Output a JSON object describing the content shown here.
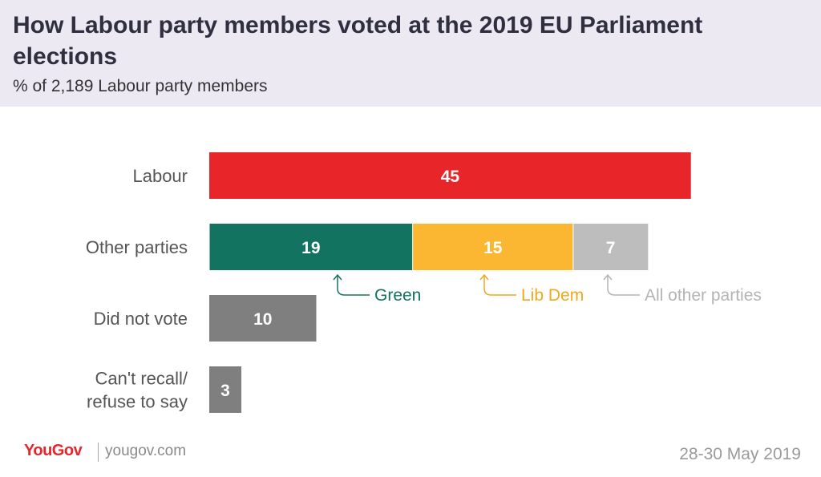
{
  "header": {
    "title": "How Labour party members voted at the 2019 EU Parliament elections",
    "subtitle": "% of 2,189 Labour party members"
  },
  "colors": {
    "header_bg": "#ece9f3",
    "labour": "#e8262a",
    "green": "#137361",
    "lib_dem": "#fbb632",
    "all_other": "#bdbdbd",
    "neutral": "#7f7f7f"
  },
  "chart_data": {
    "type": "bar",
    "orientation": "horizontal",
    "stacked": true,
    "xlim": [
      0,
      45
    ],
    "grid": false,
    "categories": [
      "Labour",
      "Other parties",
      "Did not vote",
      "Can't recall/ refuse to say"
    ],
    "bars": [
      {
        "category": "Labour",
        "segments": [
          {
            "series": "Labour",
            "value": 45,
            "color": "#e8262a"
          }
        ]
      },
      {
        "category": "Other parties",
        "segments": [
          {
            "series": "Green",
            "value": 19,
            "color": "#137361"
          },
          {
            "series": "Lib Dem",
            "value": 15,
            "color": "#fbb632"
          },
          {
            "series": "All other parties",
            "value": 7,
            "color": "#bdbdbd"
          }
        ]
      },
      {
        "category": "Did not vote",
        "segments": [
          {
            "series": "Did not vote",
            "value": 10,
            "color": "#7f7f7f"
          }
        ]
      },
      {
        "category": "Can't recall/ refuse to say",
        "segments": [
          {
            "series": "Can't recall/ refuse to say",
            "value": 3,
            "color": "#7f7f7f"
          }
        ]
      }
    ],
    "category_labels": [
      [
        "Labour"
      ],
      [
        "Other parties"
      ],
      [
        "Did not vote"
      ],
      [
        "Can't recall/",
        "refuse to say"
      ]
    ],
    "annotations": [
      {
        "label": "Green",
        "segment": "Green",
        "color": "#137361"
      },
      {
        "label": "Lib Dem",
        "segment": "Lib Dem",
        "color": "#f0a81c"
      },
      {
        "label": "All other parties",
        "segment": "All other parties",
        "color": "#b4b4b4"
      }
    ]
  },
  "footer": {
    "brand": "YouGov",
    "url": "yougov.com",
    "date": "28-30 May 2019"
  }
}
